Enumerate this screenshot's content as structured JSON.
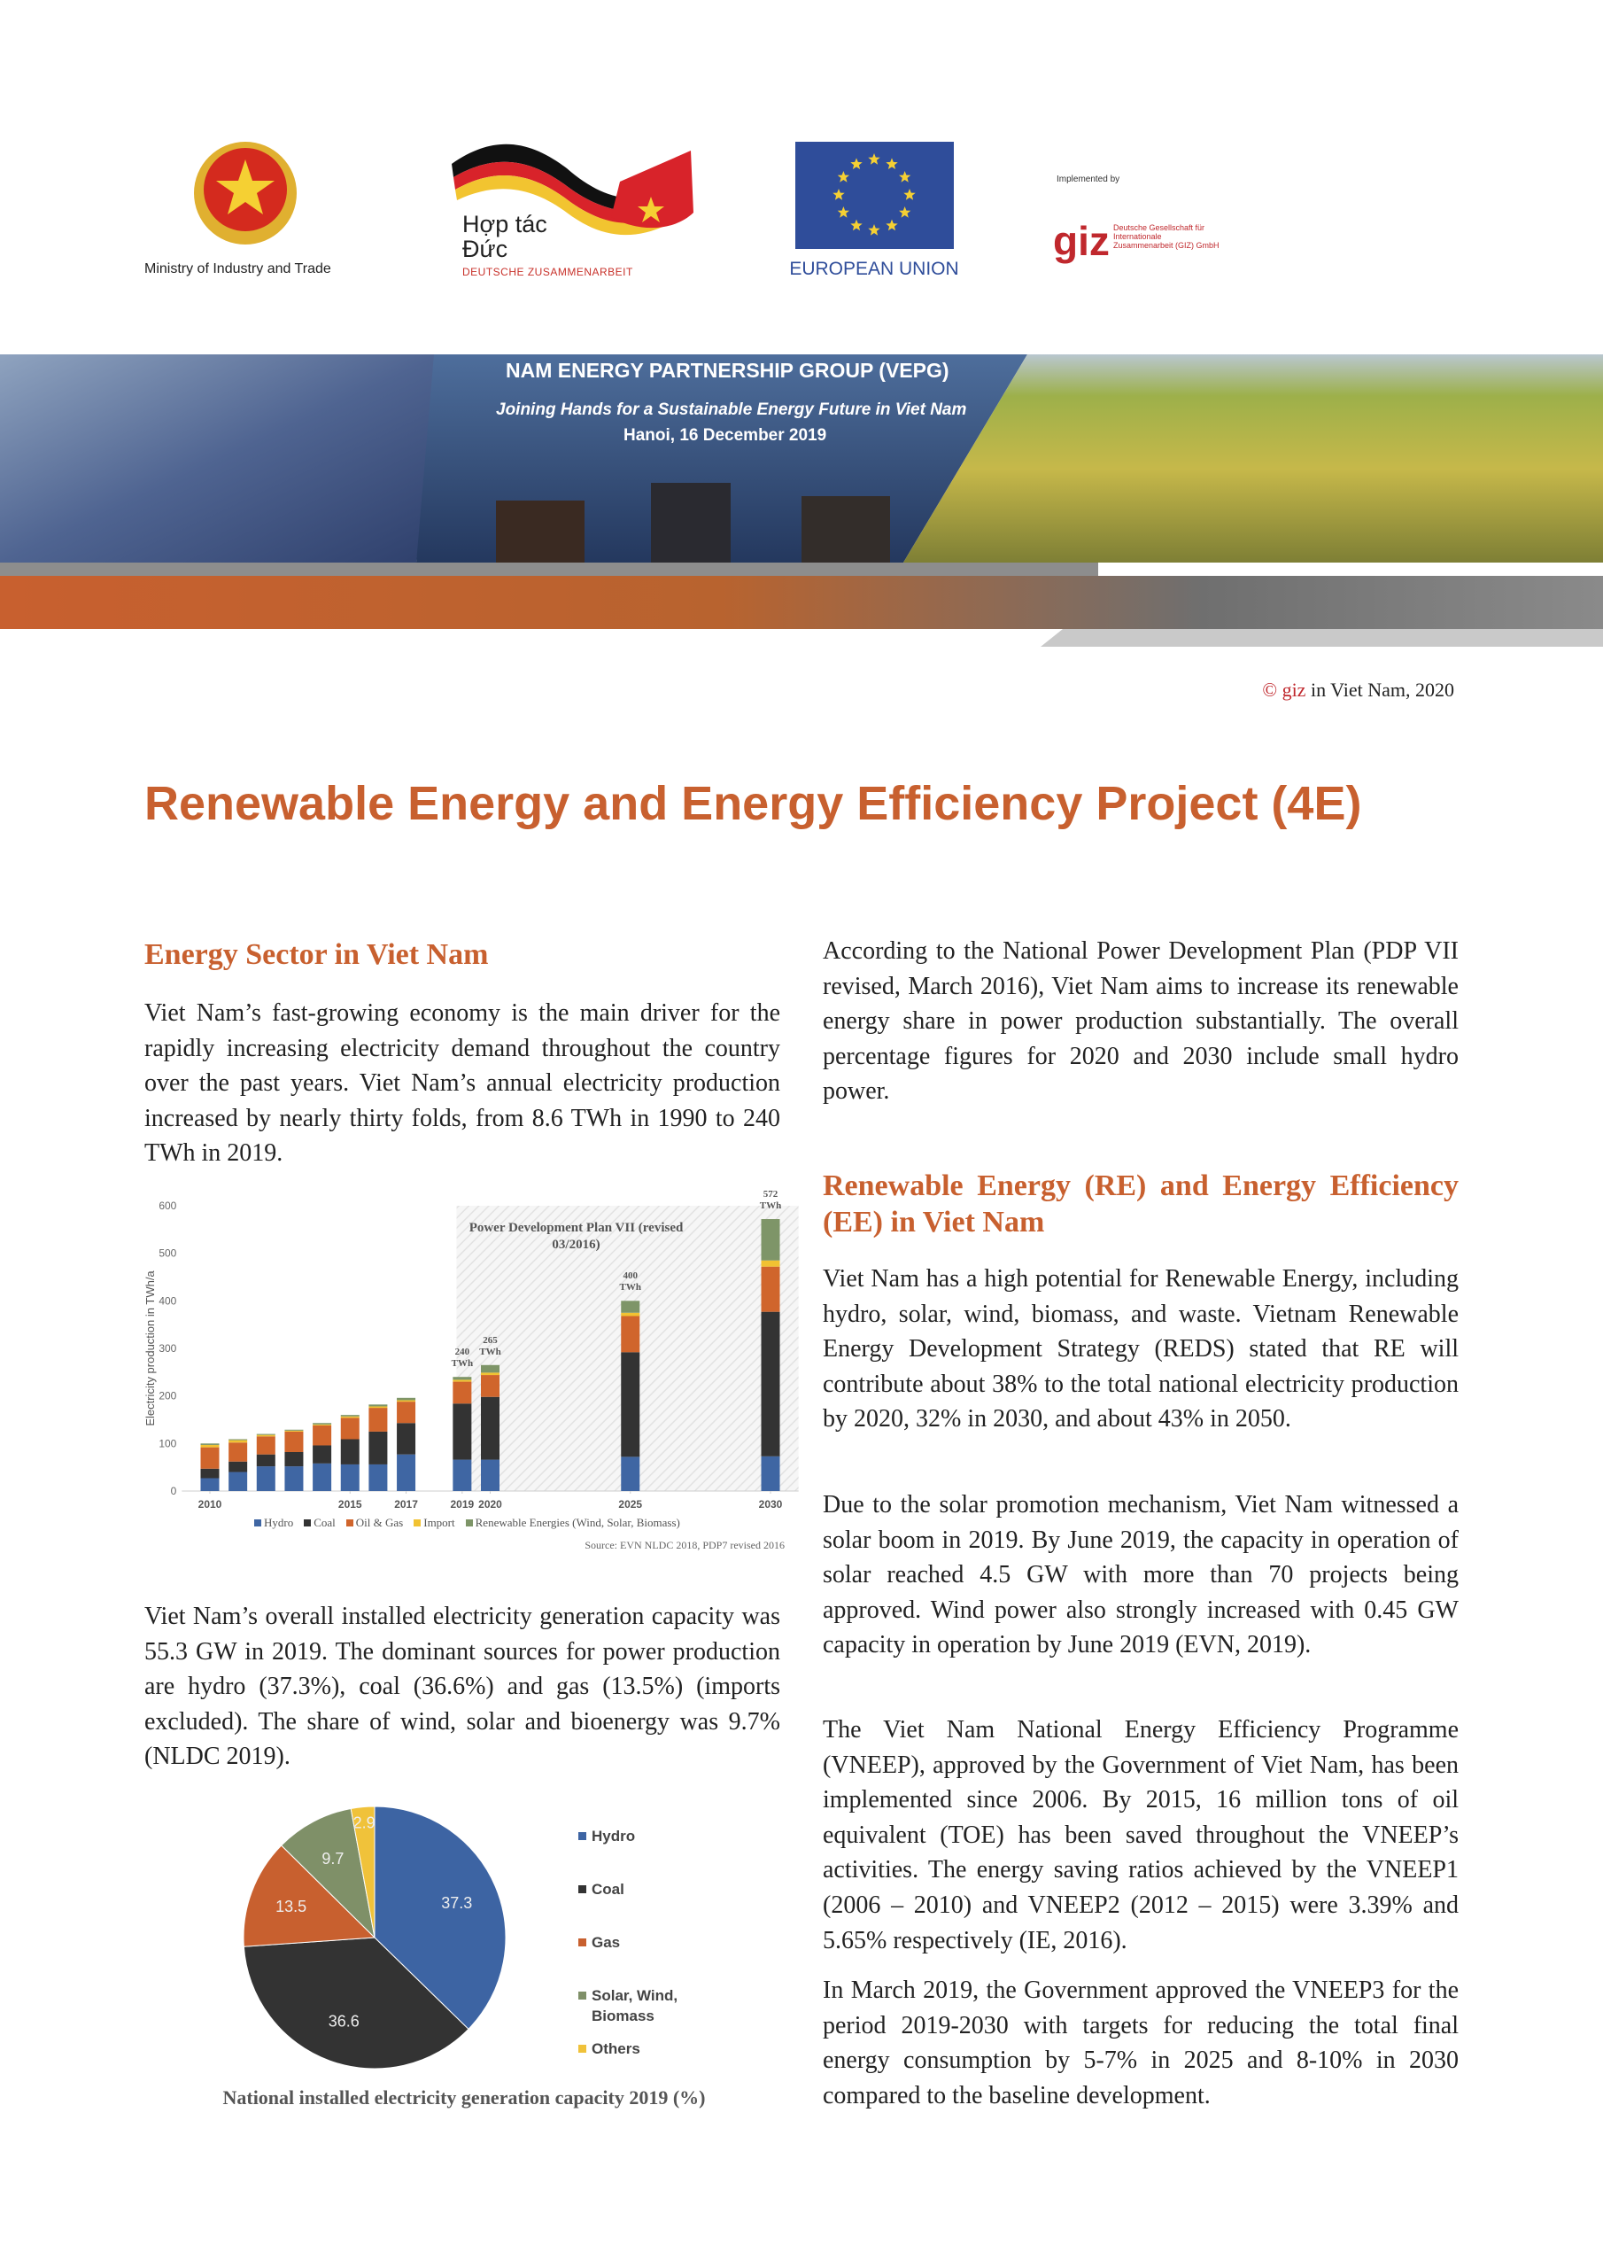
{
  "logos": {
    "ministry": "Ministry of Industry and Trade",
    "german_cooperation": {
      "line1": "Hợp tác",
      "line2": "Đức",
      "line3": "DEUTSCHE ZUSAMMENARBEIT"
    },
    "eu": "EUROPEAN UNION",
    "implemented_by": "Implemented by",
    "giz": "giz",
    "giz_full": "Deutsche Gesellschaft für Internationale Zusammenarbeit (GIZ) GmbH"
  },
  "banner": {
    "title": "NAM ENERGY PARTNERSHIP GROUP (VEPG)",
    "subtitle": "Joining Hands for a Sustainable Energy Future in Viet Nam",
    "event": "Hanoi, 16 December 2019"
  },
  "copyright": {
    "brand": "© giz",
    "text": "in Viet Nam, 2020"
  },
  "title": "Renewable Energy and Energy Efficiency Project (4E)",
  "left_column": {
    "heading": "Energy Sector in Viet Nam",
    "paragraphs": [
      "Viet Nam’s fast-growing economy is the main driver for the rapidly increasing electricity demand throughout the country over the past years. Viet Nam’s annual electricity production increased by nearly thirty folds, from 8.6 TWh in 1990 to 240 TWh in 2019.",
      "Viet Nam’s overall installed electricity generation capacity was 55.3 GW in 2019. The dominant sources for power production are hydro (37.3%), coal (36.6%) and gas (13.5%) (imports excluded). The share of wind, solar and bioenergy was 9.7% (NLDC 2019)."
    ]
  },
  "right_column": {
    "intro": "According to the National Power Development Plan (PDP VII revised, March 2016), Viet Nam aims to increase its renewable energy share in power production substantially. The overall percentage figures for 2020 and 2030 include small hydro power.",
    "heading": "Renewable Energy (RE) and Energy Efficiency (EE) in Viet Nam",
    "paragraphs": [
      "Viet Nam has a high potential for Renewable Energy, including hydro, solar, wind, biomass, and waste. Vietnam Renewable Energy Development Strategy (REDS) stated that RE will contribute about 38% to the total national electricity production by 2020, 32% in 2030, and about 43% in 2050.",
      "Due to the solar promotion mechanism, Viet Nam witnessed a solar boom in 2019. By June 2019, the capacity in operation of solar reached 4.5 GW with more than 70 projects being approved. Wind power also strongly increased with 0.45 GW capacity in operation by June 2019 (EVN, 2019).",
      "The Viet Nam National Energy Efficiency Programme (VNEEP), approved by the Government of Viet Nam, has been implemented since 2006. By 2015, 16 million tons of oil equivalent (TOE) has been saved throughout the VNEEP’s activities. The energy saving ratios achieved by the VNEEP1 (2006 – 2010) and VNEEP2 (2012 – 2015) were 3.39% and 5.65% respectively (IE, 2016).",
      "In March 2019, the Government approved the VNEEP3 for the period 2019-2030 with targets for reducing the total final energy consumption by 5-7% in 2025 and 8-10% in 2030 compared to the baseline development."
    ]
  },
  "chart_data": [
    {
      "type": "bar",
      "stacked": true,
      "y_label": "Electricity production in TWh/a",
      "x": [
        2010,
        2011,
        2012,
        2013,
        2014,
        2015,
        2016,
        2017,
        2019,
        2020,
        2025,
        2030
      ],
      "xlim": [
        2009,
        2031
      ],
      "xticks": [
        2010,
        2015,
        2017,
        2019,
        2020,
        2025,
        2030
      ],
      "ylim": [
        0,
        600
      ],
      "yticks": [
        0,
        100,
        200,
        300,
        400,
        500,
        600
      ],
      "series": [
        {
          "name": "Hydro",
          "color": "#3f66a3",
          "values": [
            27,
            40,
            52,
            52,
            58,
            56,
            56,
            77,
            66,
            66,
            72,
            73
          ]
        },
        {
          "name": "Coal",
          "color": "#333333",
          "values": [
            20,
            22,
            25,
            30,
            38,
            53,
            69,
            66,
            118,
            132,
            220,
            304
          ]
        },
        {
          "name": "Oil & Gas",
          "color": "#d0652c",
          "values": [
            45,
            40,
            38,
            43,
            42,
            45,
            50,
            45,
            46,
            46,
            76,
            95
          ]
        },
        {
          "name": "Import",
          "color": "#f1c232",
          "values": [
            5,
            5,
            3,
            2,
            2,
            3,
            3,
            3,
            4,
            5,
            7,
            13
          ]
        },
        {
          "name": "Renewable Energies (Wind, Solar, Biomass)",
          "color": "#7e9568",
          "values": [
            3,
            2,
            2,
            2,
            3,
            3,
            4,
            5,
            6,
            16,
            25,
            87
          ]
        }
      ],
      "annotations": [
        {
          "text": "240 TWh",
          "x": 2019,
          "y": 240
        },
        {
          "text": "265 TWh",
          "x": 2020,
          "y": 265
        },
        {
          "text": "400 TWh",
          "x": 2025,
          "y": 400
        },
        {
          "text": "572 TWh",
          "x": 2030,
          "y": 572
        }
      ],
      "shaded_region": {
        "label": "Power Development Plan VII (revised 03/2016)",
        "x_start": 2018.8
      },
      "source": "Source: EVN NLDC 2018, PDP7 revised 2016",
      "legend": "bottom"
    },
    {
      "type": "pie",
      "title": "National installed electricity generation capacity 2019 (%)",
      "categories": [
        "Hydro",
        "Coal",
        "Gas",
        "Solar, Wind, Biomass",
        "Others"
      ],
      "values": [
        37.3,
        36.6,
        13.5,
        9.7,
        2.9
      ],
      "colors": [
        "#3d64a3",
        "#333333",
        "#c8602f",
        "#7f9068",
        "#f0c23a"
      ],
      "legend": "right"
    }
  ]
}
